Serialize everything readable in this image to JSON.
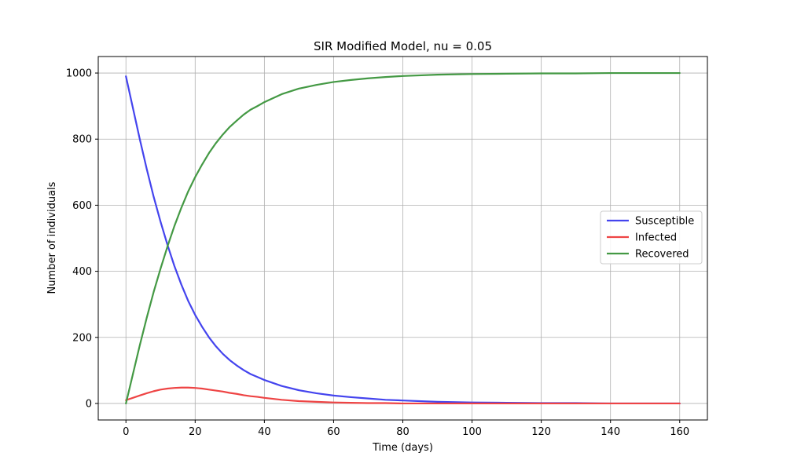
{
  "chart_data": {
    "type": "line",
    "title": "SIR Modified Model, nu = 0.05",
    "xlabel": "Time (days)",
    "ylabel": "Number of individuals",
    "xlim": [
      -8,
      168
    ],
    "ylim": [
      -50,
      1050
    ],
    "xticks": [
      0,
      20,
      40,
      60,
      80,
      100,
      120,
      140,
      160
    ],
    "yticks": [
      0,
      200,
      400,
      600,
      800,
      1000
    ],
    "grid": true,
    "legend_position": "center-right",
    "x": [
      0,
      2,
      4,
      6,
      8,
      10,
      12,
      14,
      16,
      18,
      20,
      22,
      24,
      26,
      28,
      30,
      32,
      34,
      36,
      38,
      40,
      45,
      50,
      55,
      60,
      65,
      70,
      75,
      80,
      90,
      100,
      110,
      120,
      130,
      140,
      150,
      160
    ],
    "series": [
      {
        "name": "Susceptible",
        "color": "#4444ee",
        "values": [
          990,
          895,
          800,
          710,
          626,
          550,
          480,
          416,
          360,
          310,
          268,
          232,
          200,
          173,
          150,
          131,
          115,
          101,
          89,
          80,
          71,
          53,
          40,
          31,
          24,
          19,
          15,
          11,
          9,
          5,
          3,
          2,
          1,
          1,
          0,
          0,
          0
        ]
      },
      {
        "name": "Infected",
        "color": "#ee4444",
        "values": [
          10,
          17,
          24,
          31,
          37,
          42,
          45,
          47,
          48,
          48,
          47,
          45,
          42,
          39,
          36,
          32,
          29,
          25,
          22,
          20,
          17,
          11,
          7,
          5,
          3,
          2,
          1,
          1,
          0,
          0,
          0,
          0,
          0,
          0,
          0,
          0,
          0
        ]
      },
      {
        "name": "Recovered",
        "color": "#449944",
        "values": [
          0,
          88,
          176,
          259,
          337,
          408,
          475,
          537,
          592,
          642,
          685,
          723,
          758,
          788,
          814,
          837,
          856,
          874,
          889,
          900,
          912,
          936,
          953,
          964,
          973,
          979,
          984,
          988,
          991,
          995,
          997,
          998,
          999,
          999,
          1000,
          1000,
          1000
        ]
      }
    ]
  }
}
